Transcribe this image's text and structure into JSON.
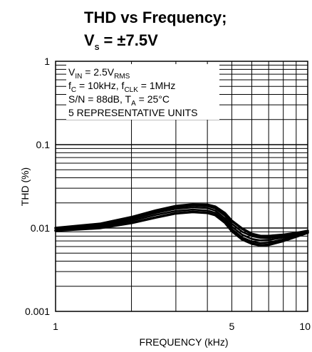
{
  "chart_data": {
    "type": "line",
    "title": {
      "line1": "THD vs Frequency;",
      "line2_main": "V",
      "line2_sub": "S",
      "line2_rest": " = ±7.5V"
    },
    "xlabel": "FREQUENCY (kHz)",
    "ylabel": "THD (%)",
    "x_scale": "log",
    "y_scale": "log",
    "xlim": [
      1,
      10
    ],
    "ylim": [
      0.001,
      1
    ],
    "x_ticks": [
      {
        "value": 1,
        "label": "1"
      },
      {
        "value": 5,
        "label": "5"
      },
      {
        "value": 10,
        "label": "10"
      }
    ],
    "y_ticks": [
      {
        "value": 1,
        "label": "1"
      },
      {
        "value": 0.1,
        "label": "0.1"
      },
      {
        "value": 0.01,
        "label": "0.01"
      },
      {
        "value": 0.001,
        "label": "0.001"
      }
    ],
    "grid": true,
    "annotations": [
      {
        "parts": [
          {
            "t": "V"
          },
          {
            "t": "IN",
            "sub": true
          },
          {
            "t": " = 2.5V"
          },
          {
            "t": "RMS",
            "sub": true
          }
        ]
      },
      {
        "parts": [
          {
            "t": "f"
          },
          {
            "t": "C",
            "sub": true
          },
          {
            "t": " = 10kHz, f"
          },
          {
            "t": "CLK",
            "sub": true
          },
          {
            "t": " = 1MHz"
          }
        ]
      },
      {
        "parts": [
          {
            "t": "S/N = 88dB, T"
          },
          {
            "t": "A",
            "sub": true
          },
          {
            "t": " = 25°C"
          }
        ]
      },
      {
        "parts": [
          {
            "t": "5 REPRESENTATIVE UNITS"
          }
        ]
      }
    ],
    "series": [
      {
        "x": [
          1,
          1.5,
          2,
          2.5,
          3,
          3.5,
          4,
          4.3,
          4.7,
          5,
          5.5,
          6,
          6.5,
          7,
          8,
          9,
          10
        ],
        "y": [
          0.01,
          0.0112,
          0.0135,
          0.0162,
          0.0183,
          0.0192,
          0.019,
          0.018,
          0.015,
          0.0122,
          0.0098,
          0.0085,
          0.008,
          0.008,
          0.0083,
          0.0087,
          0.0092
        ]
      },
      {
        "x": [
          1,
          1.5,
          2,
          2.5,
          3,
          3.5,
          4,
          4.3,
          4.7,
          5,
          5.5,
          6,
          6.5,
          7,
          8,
          9,
          10
        ],
        "y": [
          0.0099,
          0.011,
          0.0132,
          0.0158,
          0.0178,
          0.0186,
          0.0183,
          0.0172,
          0.014,
          0.0112,
          0.009,
          0.008,
          0.0076,
          0.0076,
          0.008,
          0.0085,
          0.0091
        ]
      },
      {
        "x": [
          1,
          1.5,
          2,
          2.5,
          3,
          3.5,
          4,
          4.3,
          4.7,
          5,
          5.5,
          6,
          6.5,
          7,
          8,
          9,
          10
        ],
        "y": [
          0.0097,
          0.0108,
          0.0128,
          0.0152,
          0.017,
          0.0177,
          0.0173,
          0.0162,
          0.013,
          0.0104,
          0.0083,
          0.0074,
          0.0071,
          0.0072,
          0.0077,
          0.0083,
          0.009
        ]
      },
      {
        "x": [
          1,
          1.5,
          2,
          2.5,
          3,
          3.5,
          4,
          4.3,
          4.7,
          5,
          5.5,
          6,
          6.5,
          7,
          8,
          9,
          10
        ],
        "y": [
          0.0095,
          0.0104,
          0.0122,
          0.0144,
          0.016,
          0.0166,
          0.0162,
          0.0152,
          0.0122,
          0.0097,
          0.0077,
          0.0069,
          0.0066,
          0.0067,
          0.0073,
          0.0081,
          0.0089
        ]
      },
      {
        "x": [
          1,
          1.5,
          2,
          2.5,
          3,
          3.5,
          4,
          4.3,
          4.7,
          5,
          5.5,
          6,
          6.5,
          7,
          8,
          9,
          10
        ],
        "y": [
          0.0093,
          0.01,
          0.0115,
          0.0134,
          0.015,
          0.0156,
          0.0152,
          0.0143,
          0.0116,
          0.0092,
          0.0073,
          0.0065,
          0.0062,
          0.0063,
          0.007,
          0.0079,
          0.0088
        ]
      }
    ]
  }
}
